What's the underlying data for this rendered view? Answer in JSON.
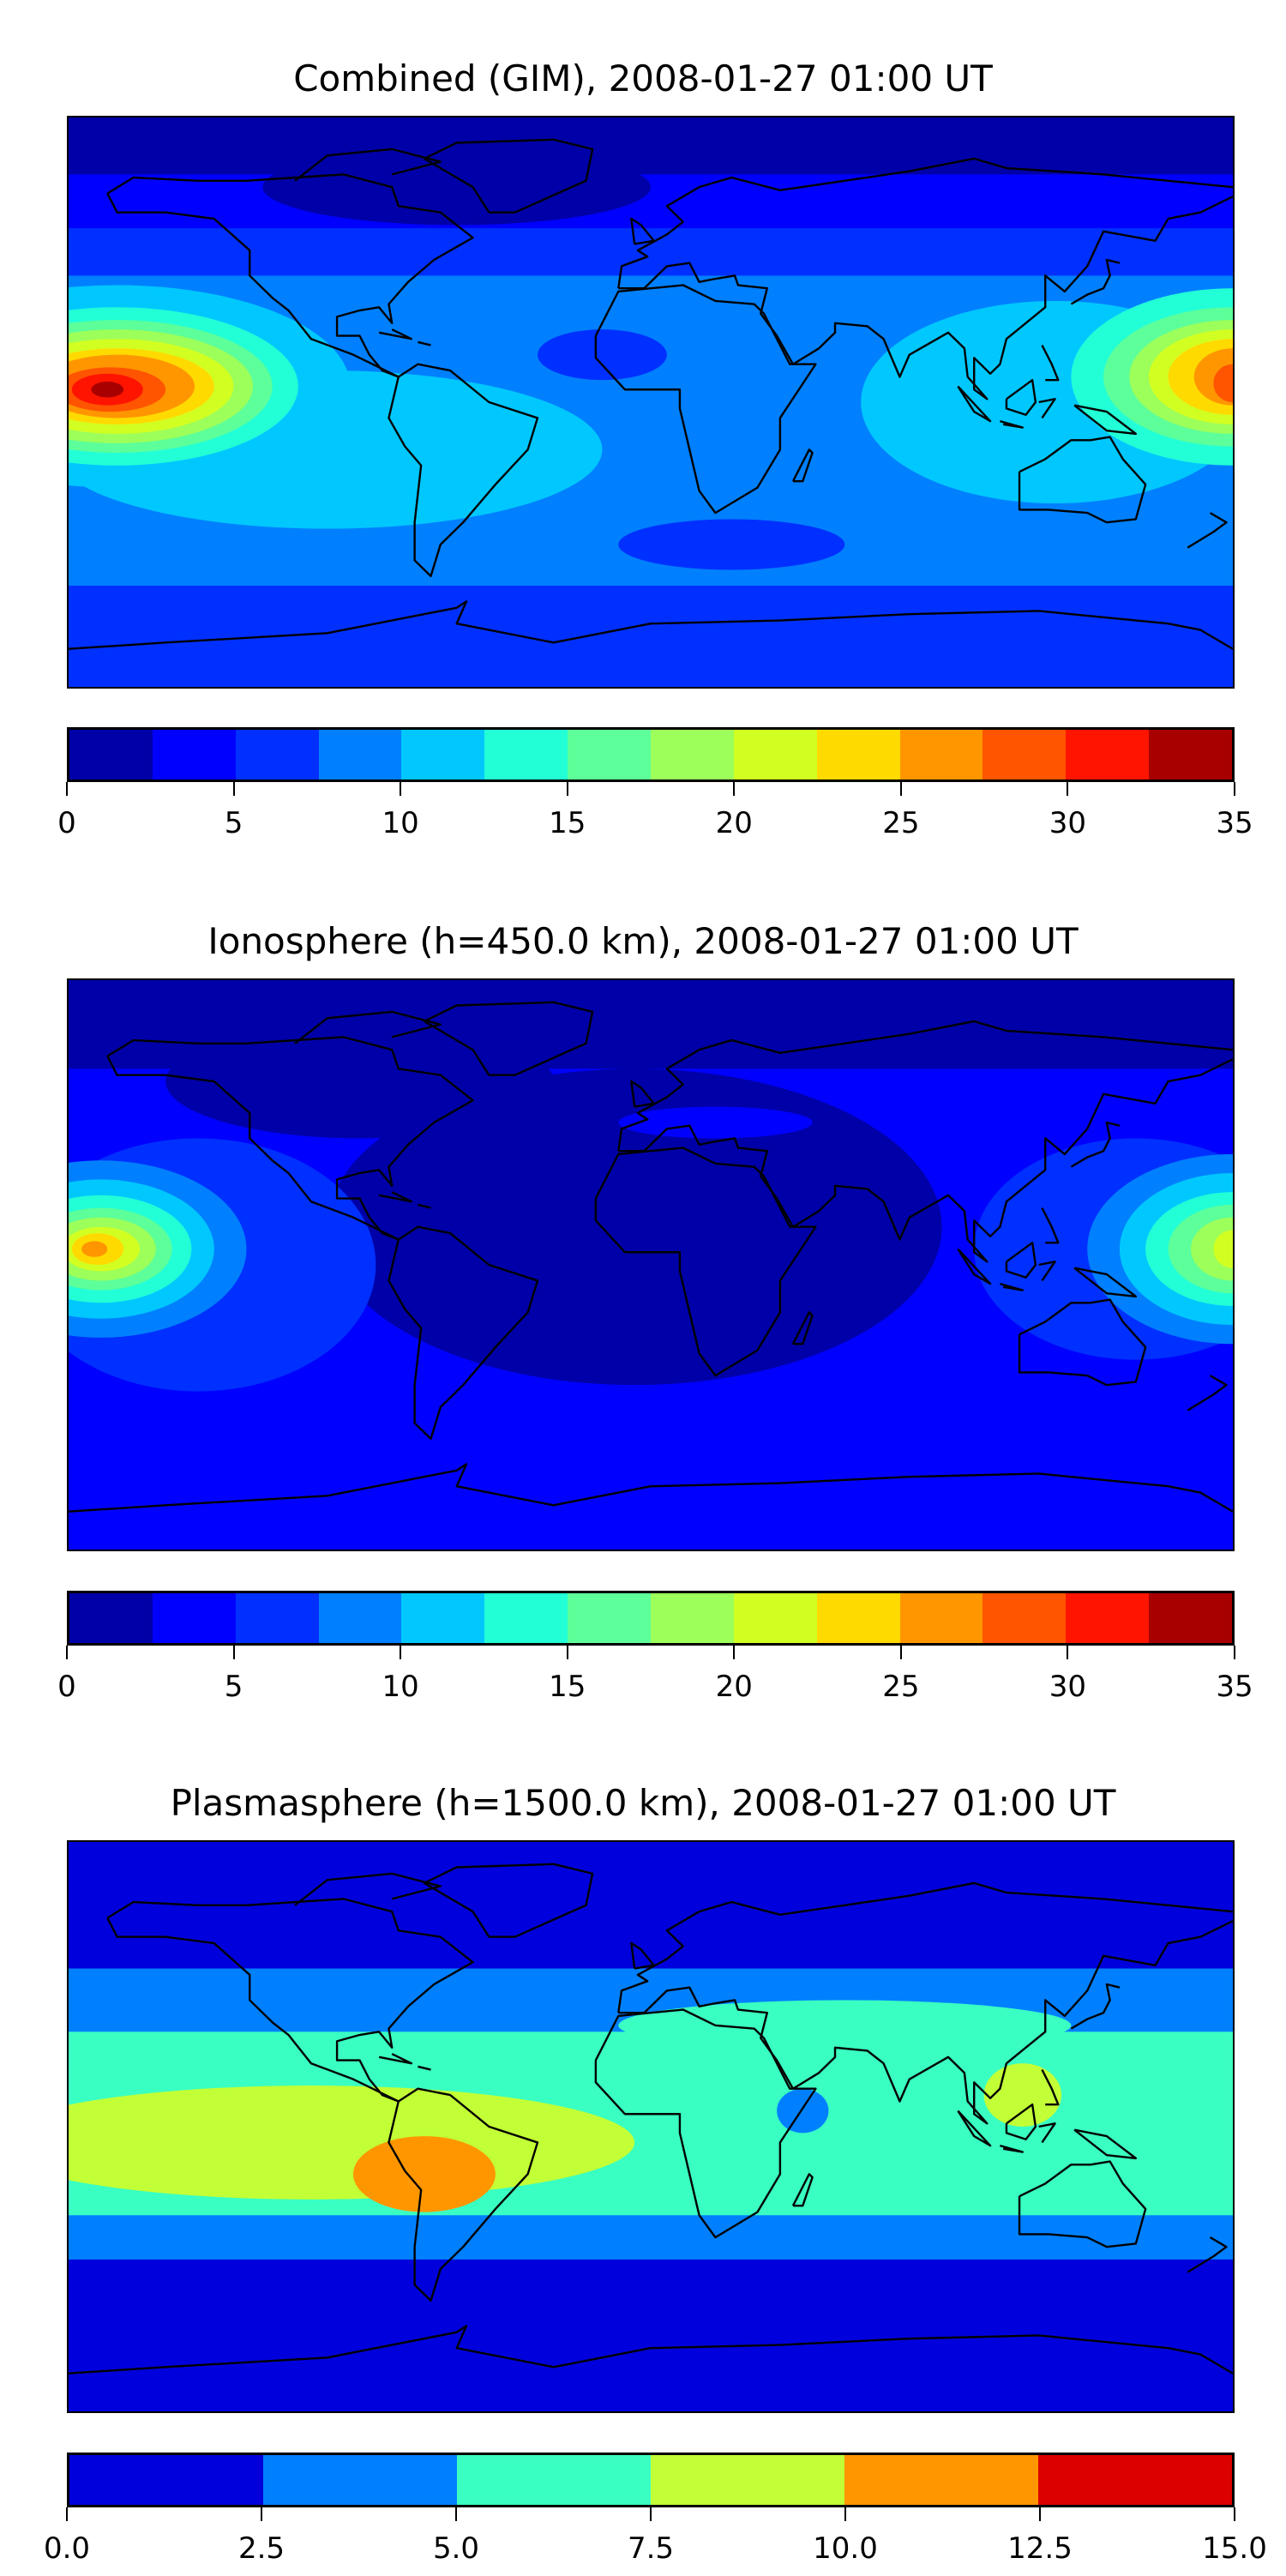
{
  "chart_data": [
    {
      "type": "heatmap",
      "title": "Combined (GIM), 2008-01-27 01:00 UT",
      "projection": "plate-carree",
      "xlim": [
        -180,
        180
      ],
      "ylim": [
        -90,
        90
      ],
      "levels": [
        0,
        2.5,
        5,
        7.5,
        10,
        12.5,
        15,
        17.5,
        20,
        22.5,
        25,
        27.5,
        30,
        32.5,
        35
      ],
      "colors": [
        "#0000a8",
        "#0000ff",
        "#0030ff",
        "#0080ff",
        "#00c8ff",
        "#22ffd6",
        "#5cff9a",
        "#9cff5a",
        "#d2ff22",
        "#ffda00",
        "#ff9600",
        "#ff5400",
        "#ff1400",
        "#a80000"
      ],
      "tick_labels": [
        "0",
        "5",
        "10",
        "15",
        "20",
        "25",
        "30",
        "35"
      ],
      "ticks": [
        0,
        5,
        10,
        15,
        20,
        25,
        30,
        35
      ],
      "base_level": 3,
      "regions": [
        {
          "shape": "band",
          "level": 2,
          "lat": [
            40,
            90
          ]
        },
        {
          "shape": "band",
          "level": 1,
          "lat": [
            55,
            90
          ]
        },
        {
          "shape": "band",
          "level": 0,
          "lat": [
            72,
            90
          ]
        },
        {
          "shape": "ellipse",
          "level": 0,
          "lon": -60,
          "lat": 68,
          "rlon": 60,
          "rlat": 12
        },
        {
          "shape": "band",
          "level": 2,
          "lat": [
            -90,
            -58
          ]
        },
        {
          "shape": "ellipse",
          "level": 2,
          "lon": 25,
          "lat": -45,
          "rlon": 35,
          "rlat": 8
        },
        {
          "shape": "ellipse",
          "level": 2,
          "lon": -15,
          "lat": 15,
          "rlon": 20,
          "rlat": 8
        },
        {
          "shape": "ellipse",
          "level": 4,
          "lon": -100,
          "lat": -15,
          "rlon": 85,
          "rlat": 25
        },
        {
          "shape": "ellipse",
          "level": 4,
          "lon": 125,
          "lat": 0,
          "rlon": 60,
          "rlat": 32
        },
        {
          "shape": "ellipse",
          "level": 4,
          "lon": -165,
          "lat": 5,
          "rlon": 72,
          "rlat": 32
        },
        {
          "shape": "ellipse",
          "level": 5,
          "lon": -165,
          "lat": 5,
          "rlon": 56,
          "rlat": 25
        },
        {
          "shape": "ellipse",
          "level": 6,
          "lon": -165,
          "lat": 5,
          "rlon": 48,
          "rlat": 21
        },
        {
          "shape": "ellipse",
          "level": 7,
          "lon": -165,
          "lat": 5,
          "rlon": 42,
          "rlat": 18
        },
        {
          "shape": "ellipse",
          "level": 8,
          "lon": -165,
          "lat": 5,
          "rlon": 36,
          "rlat": 15
        },
        {
          "shape": "ellipse",
          "level": 9,
          "lon": -165,
          "lat": 5,
          "rlon": 30,
          "rlat": 12
        },
        {
          "shape": "ellipse",
          "level": 10,
          "lon": -165,
          "lat": 5,
          "rlon": 24,
          "rlat": 10
        },
        {
          "shape": "ellipse",
          "level": 11,
          "lon": -167,
          "lat": 4,
          "rlon": 17,
          "rlat": 7
        },
        {
          "shape": "ellipse",
          "level": 12,
          "lon": -168,
          "lat": 4,
          "rlon": 11,
          "rlat": 5
        },
        {
          "shape": "ellipse",
          "level": 13,
          "lon": -168,
          "lat": 4,
          "rlon": 5,
          "rlat": 2.5
        },
        {
          "shape": "ellipse",
          "level": 5,
          "lon": 180,
          "lat": 8,
          "rlon": 50,
          "rlat": 28
        },
        {
          "shape": "ellipse",
          "level": 6,
          "lon": 180,
          "lat": 8,
          "rlon": 40,
          "rlat": 22
        },
        {
          "shape": "ellipse",
          "level": 7,
          "lon": 180,
          "lat": 8,
          "rlon": 32,
          "rlat": 18
        },
        {
          "shape": "ellipse",
          "level": 8,
          "lon": 180,
          "lat": 8,
          "rlon": 26,
          "rlat": 15
        },
        {
          "shape": "ellipse",
          "level": 9,
          "lon": 180,
          "lat": 8,
          "rlon": 20,
          "rlat": 12
        },
        {
          "shape": "ellipse",
          "level": 10,
          "lon": 180,
          "lat": 8,
          "rlon": 12,
          "rlat": 9
        },
        {
          "shape": "ellipse",
          "level": 11,
          "lon": 180,
          "lat": 6,
          "rlon": 6,
          "rlat": 6
        }
      ]
    },
    {
      "type": "heatmap",
      "title": "Ionosphere  (h=450.0 km), 2008-01-27 01:00 UT",
      "projection": "plate-carree",
      "xlim": [
        -180,
        180
      ],
      "ylim": [
        -90,
        90
      ],
      "levels": [
        0,
        2.5,
        5,
        7.5,
        10,
        12.5,
        15,
        17.5,
        20,
        22.5,
        25,
        27.5,
        30,
        32.5,
        35
      ],
      "colors": [
        "#0000a8",
        "#0000ff",
        "#0030ff",
        "#0080ff",
        "#00c8ff",
        "#22ffd6",
        "#5cff9a",
        "#9cff5a",
        "#d2ff22",
        "#ffda00",
        "#ff9600",
        "#ff5400",
        "#ff1400",
        "#a80000"
      ],
      "tick_labels": [
        "0",
        "5",
        "10",
        "15",
        "20",
        "25",
        "30",
        "35"
      ],
      "ticks": [
        0,
        5,
        10,
        15,
        20,
        25,
        30,
        35
      ],
      "base_level": 1,
      "regions": [
        {
          "shape": "band",
          "level": 0,
          "lat": [
            62,
            90
          ]
        },
        {
          "shape": "ellipse",
          "level": 0,
          "lon": -90,
          "lat": 58,
          "rlon": 60,
          "rlat": 18
        },
        {
          "shape": "ellipse",
          "level": 0,
          "lon": -5,
          "lat": 12,
          "rlon": 95,
          "rlat": 50
        },
        {
          "shape": "ellipse",
          "level": 1,
          "lon": 20,
          "lat": 45,
          "rlon": 30,
          "rlat": 5
        },
        {
          "shape": "ellipse",
          "level": 2,
          "lon": -140,
          "lat": 0,
          "rlon": 55,
          "rlat": 40
        },
        {
          "shape": "ellipse",
          "level": 2,
          "lon": 150,
          "lat": 5,
          "rlon": 50,
          "rlat": 35
        },
        {
          "shape": "ellipse",
          "level": 3,
          "lon": -170,
          "lat": 5,
          "rlon": 45,
          "rlat": 28
        },
        {
          "shape": "ellipse",
          "level": 4,
          "lon": -170,
          "lat": 5,
          "rlon": 35,
          "rlat": 22
        },
        {
          "shape": "ellipse",
          "level": 5,
          "lon": -170,
          "lat": 5,
          "rlon": 28,
          "rlat": 17
        },
        {
          "shape": "ellipse",
          "level": 6,
          "lon": -170,
          "lat": 5,
          "rlon": 22,
          "rlat": 13
        },
        {
          "shape": "ellipse",
          "level": 7,
          "lon": -170,
          "lat": 5,
          "rlon": 17,
          "rlat": 10
        },
        {
          "shape": "ellipse",
          "level": 8,
          "lon": -170,
          "lat": 5,
          "rlon": 12,
          "rlat": 7
        },
        {
          "shape": "ellipse",
          "level": 9,
          "lon": -171,
          "lat": 5,
          "rlon": 8,
          "rlat": 5
        },
        {
          "shape": "ellipse",
          "level": 10,
          "lon": -172,
          "lat": 5,
          "rlon": 4,
          "rlat": 2.5
        },
        {
          "shape": "ellipse",
          "level": 3,
          "lon": 180,
          "lat": 5,
          "rlon": 45,
          "rlat": 30
        },
        {
          "shape": "ellipse",
          "level": 4,
          "lon": 180,
          "lat": 5,
          "rlon": 35,
          "rlat": 24
        },
        {
          "shape": "ellipse",
          "level": 5,
          "lon": 180,
          "lat": 5,
          "rlon": 27,
          "rlat": 18
        },
        {
          "shape": "ellipse",
          "level": 6,
          "lon": 180,
          "lat": 5,
          "rlon": 20,
          "rlat": 14
        },
        {
          "shape": "ellipse",
          "level": 7,
          "lon": 180,
          "lat": 5,
          "rlon": 13,
          "rlat": 10
        },
        {
          "shape": "ellipse",
          "level": 8,
          "lon": 180,
          "lat": 5,
          "rlon": 6,
          "rlat": 6
        }
      ]
    },
    {
      "type": "heatmap",
      "title": "Plasmasphere (h=1500.0 km), 2008-01-27 01:00 UT",
      "projection": "plate-carree",
      "xlim": [
        -180,
        180
      ],
      "ylim": [
        -90,
        90
      ],
      "levels": [
        0,
        2.5,
        5,
        7.5,
        10,
        12.5,
        15
      ],
      "colors": [
        "#0000dc",
        "#0080ff",
        "#3affc2",
        "#c2ff36",
        "#ff9600",
        "#dc0000"
      ],
      "tick_labels": [
        "0.0",
        "2.5",
        "5.0",
        "7.5",
        "10.0",
        "12.5",
        "15.0"
      ],
      "ticks": [
        0,
        2.5,
        5,
        7.5,
        10,
        12.5,
        15
      ],
      "base_level": 0,
      "regions": [
        {
          "shape": "band",
          "level": 1,
          "lat": [
            -42,
            50
          ]
        },
        {
          "shape": "band",
          "level": 2,
          "lat": [
            -28,
            30
          ]
        },
        {
          "shape": "ellipse",
          "level": 2,
          "lon": 60,
          "lat": 32,
          "rlon": 70,
          "rlat": 8
        },
        {
          "shape": "ellipse",
          "level": 3,
          "lon": -105,
          "lat": -5,
          "rlon": 100,
          "rlat": 18
        },
        {
          "shape": "ellipse",
          "level": 4,
          "lon": -70,
          "lat": -15,
          "rlon": 22,
          "rlat": 12
        },
        {
          "shape": "ellipse",
          "level": 3,
          "lon": 115,
          "lat": 10,
          "rlon": 12,
          "rlat": 10
        },
        {
          "shape": "ellipse",
          "level": 1,
          "lon": 47,
          "lat": 5,
          "rlon": 8,
          "rlat": 7
        }
      ]
    }
  ]
}
